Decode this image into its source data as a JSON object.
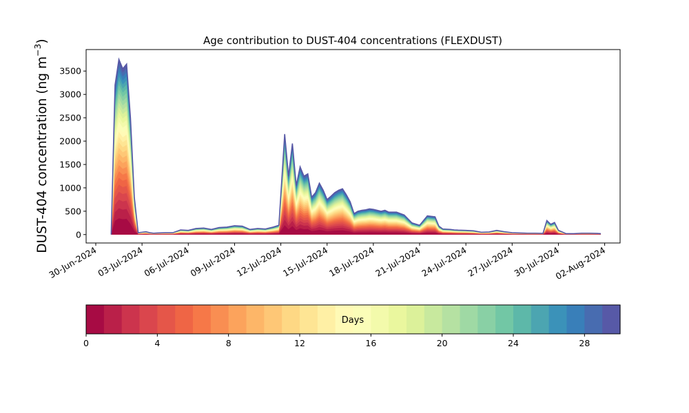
{
  "chart_data": {
    "type": "area",
    "title": "Age contribution to DUST-404 concentrations (FLEXDUST)",
    "xlabel": "",
    "ylabel": "DUST-404 concentration (ng m",
    "ylabel_sup": "−3",
    "ylabel_close": ")",
    "ylim": [
      -180,
      3960
    ],
    "yticks": [
      0,
      500,
      1000,
      1500,
      2000,
      2500,
      3000,
      3500
    ],
    "xlim": [
      "2024-06-29T09:00",
      "2024-08-03T00:00"
    ],
    "xticks": [
      "30-Jun-2024",
      "03-Jul-2024",
      "06-Jul-2024",
      "09-Jul-2024",
      "12-Jul-2024",
      "15-Jul-2024",
      "18-Jul-2024",
      "21-Jul-2024",
      "24-Jul-2024",
      "27-Jul-2024",
      "30-Jul-2024",
      "02-Aug-2024"
    ],
    "grid": false,
    "series_note": "stacked contributions by particle age in days (0-30); top envelope (total) given below",
    "total": {
      "dates": [
        "2024-07-01T00:00",
        "2024-07-01T06:00",
        "2024-07-01T12:00",
        "2024-07-01T18:00",
        "2024-07-02T00:00",
        "2024-07-02T06:00",
        "2024-07-02T12:00",
        "2024-07-02T18:00",
        "2024-07-03T00:00",
        "2024-07-03T06:00",
        "2024-07-03T12:00",
        "2024-07-03T18:00",
        "2024-07-04T00:00",
        "2024-07-04T12:00",
        "2024-07-05T00:00",
        "2024-07-05T12:00",
        "2024-07-06T00:00",
        "2024-07-06T12:00",
        "2024-07-07T00:00",
        "2024-07-07T12:00",
        "2024-07-08T00:00",
        "2024-07-08T12:00",
        "2024-07-09T00:00",
        "2024-07-09T12:00",
        "2024-07-10T00:00",
        "2024-07-10T12:00",
        "2024-07-11T00:00",
        "2024-07-11T12:00",
        "2024-07-11T21:00",
        "2024-07-12T06:00",
        "2024-07-12T12:00",
        "2024-07-12T18:00",
        "2024-07-13T00:00",
        "2024-07-13T06:00",
        "2024-07-13T12:00",
        "2024-07-13T18:00",
        "2024-07-14T00:00",
        "2024-07-14T06:00",
        "2024-07-14T12:00",
        "2024-07-14T18:00",
        "2024-07-15T00:00",
        "2024-07-15T06:00",
        "2024-07-15T12:00",
        "2024-07-15T18:00",
        "2024-07-16T00:00",
        "2024-07-16T06:00",
        "2024-07-16T12:00",
        "2024-07-16T18:00",
        "2024-07-17T00:00",
        "2024-07-17T06:00",
        "2024-07-17T12:00",
        "2024-07-17T18:00",
        "2024-07-18T00:00",
        "2024-07-18T06:00",
        "2024-07-18T12:00",
        "2024-07-18T18:00",
        "2024-07-19T00:00",
        "2024-07-19T12:00",
        "2024-07-20T00:00",
        "2024-07-20T12:00",
        "2024-07-21T00:00",
        "2024-07-21T12:00",
        "2024-07-22T00:00",
        "2024-07-22T06:00",
        "2024-07-22T12:00",
        "2024-07-23T00:00",
        "2024-07-23T06:00",
        "2024-07-23T12:00",
        "2024-07-24T00:00",
        "2024-07-24T12:00",
        "2024-07-25T00:00",
        "2024-07-25T12:00",
        "2024-07-26T00:00",
        "2024-07-26T12:00",
        "2024-07-27T00:00",
        "2024-07-27T12:00",
        "2024-07-28T00:00",
        "2024-07-28T12:00",
        "2024-07-29T00:00",
        "2024-07-29T06:00",
        "2024-07-29T12:00",
        "2024-07-29T18:00",
        "2024-07-30T00:00",
        "2024-07-30T12:00",
        "2024-07-31T00:00",
        "2024-07-31T12:00",
        "2024-08-01T00:00",
        "2024-08-01T12:00",
        "2024-08-01T18:00"
      ],
      "values": [
        0,
        3200,
        3750,
        3550,
        3650,
        2500,
        800,
        40,
        50,
        60,
        40,
        30,
        35,
        40,
        40,
        100,
        90,
        130,
        140,
        110,
        150,
        160,
        190,
        180,
        110,
        130,
        120,
        160,
        200,
        2150,
        1250,
        1950,
        1050,
        1450,
        1250,
        1300,
        800,
        900,
        1100,
        950,
        750,
        820,
        900,
        950,
        980,
        850,
        700,
        450,
        500,
        520,
        530,
        550,
        540,
        520,
        500,
        520,
        480,
        480,
        420,
        250,
        200,
        400,
        380,
        180,
        120,
        110,
        100,
        95,
        90,
        80,
        50,
        55,
        90,
        60,
        40,
        35,
        30,
        30,
        25,
        300,
        220,
        260,
        90,
        20,
        20,
        30,
        30,
        25,
        20
      ]
    }
  },
  "colorbar": {
    "label": "Days",
    "min": 0,
    "max": 30,
    "levels": 30,
    "ticks": [
      "0",
      "4",
      "8",
      "12",
      "16",
      "20",
      "24",
      "28"
    ],
    "colormap": "Spectral"
  }
}
